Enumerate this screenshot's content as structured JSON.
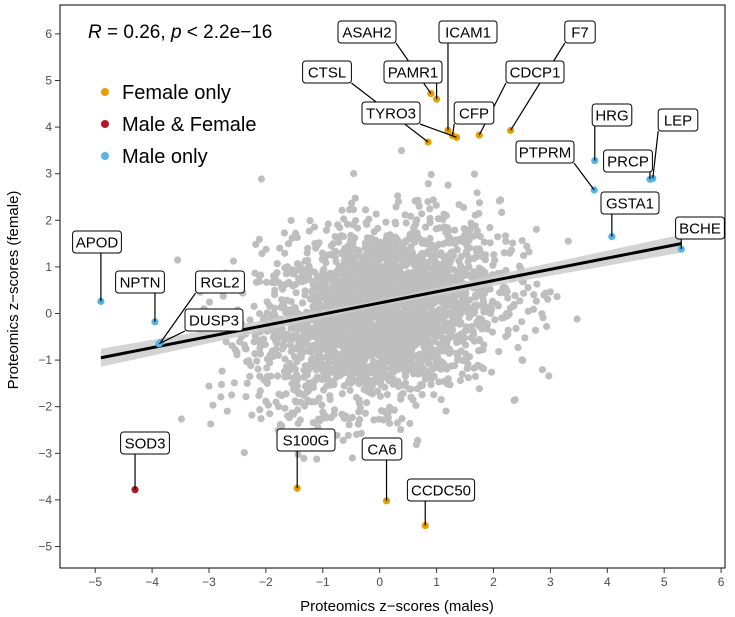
{
  "chart_data": {
    "type": "scatter",
    "xlabel": "Proteomics z−scores (males)",
    "ylabel": "Proteomics z−scores (female)",
    "xlim": [
      -5.6,
      6.3
    ],
    "ylim": [
      -5.5,
      6.5
    ],
    "xticks": [
      -5,
      -4,
      -3,
      -2,
      -1,
      0,
      1,
      2,
      3,
      4,
      5,
      6
    ],
    "yticks": [
      -5,
      -4,
      -3,
      -2,
      -1,
      0,
      1,
      2,
      3,
      4,
      5,
      6
    ],
    "xtick_labels": [
      "−5",
      "−4",
      "−3",
      "−2",
      "−1",
      "0",
      "1",
      "2",
      "3",
      "4",
      "5",
      "6"
    ],
    "ytick_labels": [
      "−5",
      "−4",
      "−3",
      "−2",
      "−1",
      "0",
      "1",
      "2",
      "3",
      "4",
      "5",
      "6"
    ],
    "grid": false,
    "stat_annotation": {
      "r_symbol": "R",
      "r_value": " = 0.26, ",
      "p_symbol": "p",
      "p_value": " < 2.2e−16"
    },
    "legend": {
      "placement": "top-left",
      "entries": [
        {
          "label": "Female only",
          "color": "#E69F00"
        },
        {
          "label": "Male & Female",
          "color": "#B2182B"
        },
        {
          "label": "Male only",
          "color": "#56B4E9"
        }
      ]
    },
    "background_color": "#BEBEBE",
    "background_point_count": 2800,
    "regression": {
      "x": [
        -4.9,
        5.3
      ],
      "y": [
        -0.95,
        1.5
      ],
      "color": "#000000",
      "band_color": "#CCCCCC"
    },
    "highlighted": [
      {
        "label": "ASAH2",
        "x": 0.9,
        "y": 4.72,
        "group": "Female only"
      },
      {
        "label": "ICAM1",
        "x": 1.2,
        "y": 3.93,
        "group": "Female only"
      },
      {
        "label": "F7",
        "x": 2.3,
        "y": 3.93,
        "group": "Female only"
      },
      {
        "label": "CTSL",
        "x": 0.85,
        "y": 3.68,
        "group": "Female only"
      },
      {
        "label": "PAMR1",
        "x": 1.0,
        "y": 4.6,
        "group": "Female only"
      },
      {
        "label": "CDCP1",
        "x": 1.75,
        "y": 3.83,
        "group": "Female only"
      },
      {
        "label": "TYRO3",
        "x": 1.35,
        "y": 3.78,
        "group": "Female only"
      },
      {
        "label": "CFP",
        "x": 1.28,
        "y": 3.82,
        "group": "Female only"
      },
      {
        "label": "HRG",
        "x": 3.78,
        "y": 3.28,
        "group": "Male only"
      },
      {
        "label": "LEP",
        "x": 4.8,
        "y": 2.9,
        "group": "Male only"
      },
      {
        "label": "PTPRM",
        "x": 3.77,
        "y": 2.65,
        "group": "Male only"
      },
      {
        "label": "PRCP",
        "x": 4.75,
        "y": 2.88,
        "group": "Male only"
      },
      {
        "label": "GSTA1",
        "x": 4.08,
        "y": 1.65,
        "group": "Male only"
      },
      {
        "label": "BCHE",
        "x": 5.3,
        "y": 1.38,
        "group": "Male only"
      },
      {
        "label": "APOD",
        "x": -4.9,
        "y": 0.26,
        "group": "Male only"
      },
      {
        "label": "NPTN",
        "x": -3.95,
        "y": -0.18,
        "group": "Male only"
      },
      {
        "label": "RGL2",
        "x": -3.85,
        "y": -0.62,
        "group": "Male only"
      },
      {
        "label": "DUSP3",
        "x": -3.88,
        "y": -0.65,
        "group": "Male only"
      },
      {
        "label": "SOD3",
        "x": -4.3,
        "y": -3.78,
        "group": "Male & Female"
      },
      {
        "label": "S100G",
        "x": -1.45,
        "y": -3.75,
        "group": "Female only"
      },
      {
        "label": "CA6",
        "x": 0.12,
        "y": -4.02,
        "group": "Female only"
      },
      {
        "label": "CCDC50",
        "x": 0.8,
        "y": -4.55,
        "group": "Female only"
      }
    ]
  }
}
